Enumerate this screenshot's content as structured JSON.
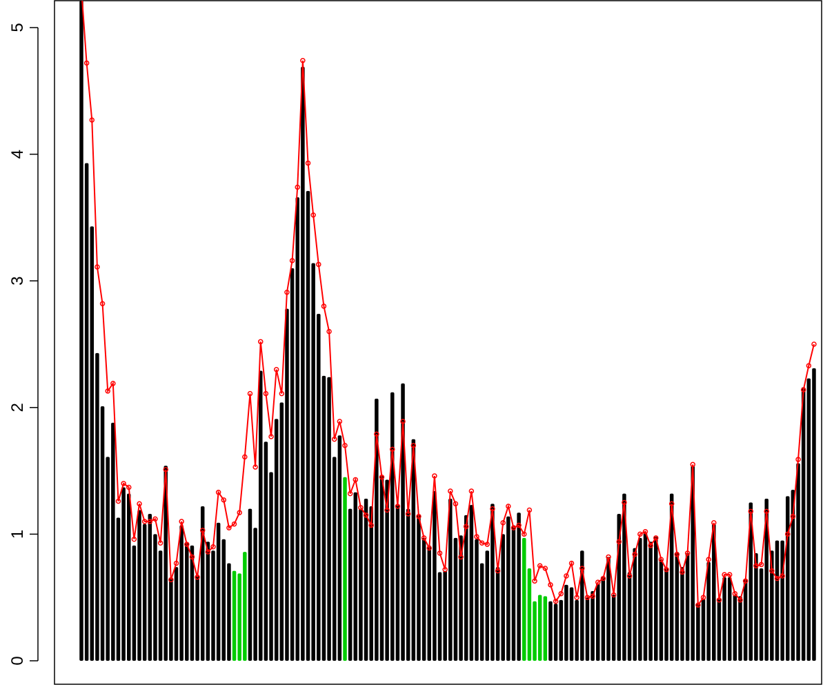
{
  "chart_data": {
    "type": "bar",
    "title": "",
    "xlabel": "",
    "ylabel": "",
    "ylim": [
      0,
      5.2
    ],
    "x_axis_shown": false,
    "y_ticks": [
      0,
      1,
      2,
      3,
      4,
      5
    ],
    "y_tick_labels": [
      "0",
      "1",
      "2",
      "3",
      "4",
      "5"
    ],
    "grid": false,
    "legend": "none",
    "colors": {
      "bar_default": "#000000",
      "bar_highlight": "#00cc00",
      "line": "#ff0000"
    },
    "bar_values": [
      5.25,
      3.93,
      3.43,
      2.43,
      2.01,
      1.61,
      1.88,
      1.13,
      1.37,
      1.32,
      0.91,
      1.19,
      1.08,
      1.16,
      1.0,
      0.87,
      1.54,
      0.65,
      0.74,
      1.07,
      0.93,
      0.91,
      0.68,
      1.22,
      0.94,
      0.87,
      1.09,
      0.96,
      0.77,
      0.71,
      0.69,
      0.86,
      1.2,
      1.05,
      2.29,
      1.73,
      1.49,
      1.91,
      2.04,
      2.78,
      3.1,
      3.66,
      4.69,
      3.71,
      3.14,
      2.74,
      2.25,
      2.24,
      1.61,
      1.78,
      1.45,
      1.2,
      1.33,
      1.2,
      1.28,
      1.22,
      2.07,
      1.46,
      1.43,
      2.12,
      1.23,
      2.19,
      1.2,
      1.75,
      1.15,
      0.97,
      0.91,
      1.34,
      0.7,
      0.71,
      1.28,
      0.97,
      0.99,
      1.15,
      1.23,
      0.96,
      0.77,
      0.87,
      1.24,
      0.74,
      1.0,
      1.14,
      1.07,
      1.17,
      0.97,
      0.73,
      0.47,
      0.52,
      0.51,
      0.47,
      0.45,
      0.48,
      0.6,
      0.58,
      0.48,
      0.87,
      0.5,
      0.55,
      0.61,
      0.66,
      0.82,
      0.52,
      1.16,
      1.32,
      0.7,
      0.89,
      0.97,
      1.01,
      0.94,
      0.98,
      0.8,
      0.73,
      1.32,
      0.86,
      0.74,
      0.85,
      1.54,
      0.45,
      0.49,
      0.78,
      1.08,
      0.49,
      0.66,
      0.66,
      0.52,
      0.51,
      0.64,
      1.25,
      0.85,
      0.73,
      1.28,
      0.87,
      0.95,
      0.95,
      1.3,
      1.35,
      1.56,
      2.16,
      2.23,
      2.31
    ],
    "highlighted_bar_indices": [
      29,
      30,
      31,
      50,
      84,
      85,
      86,
      87,
      88
    ],
    "line_values": [
      5.3,
      4.72,
      4.27,
      3.11,
      2.82,
      2.13,
      2.19,
      1.26,
      1.4,
      1.37,
      0.96,
      1.24,
      1.1,
      1.1,
      1.12,
      0.93,
      1.51,
      0.64,
      0.77,
      1.1,
      0.92,
      0.82,
      0.66,
      1.03,
      0.86,
      0.9,
      1.33,
      1.27,
      1.05,
      1.08,
      1.17,
      1.61,
      2.11,
      1.53,
      2.52,
      2.11,
      1.77,
      2.3,
      2.11,
      2.91,
      3.16,
      3.74,
      4.74,
      3.93,
      3.52,
      3.13,
      2.8,
      2.6,
      1.75,
      1.89,
      1.7,
      1.32,
      1.43,
      1.21,
      1.15,
      1.07,
      1.79,
      1.45,
      1.19,
      1.67,
      1.22,
      1.89,
      1.16,
      1.7,
      1.14,
      0.97,
      0.89,
      1.46,
      0.85,
      0.72,
      1.34,
      1.24,
      0.82,
      1.06,
      1.34,
      0.98,
      0.93,
      0.92,
      1.2,
      0.71,
      1.09,
      1.22,
      1.05,
      1.07,
      1.0,
      1.19,
      0.63,
      0.75,
      0.73,
      0.6,
      0.47,
      0.53,
      0.67,
      0.77,
      0.5,
      0.73,
      0.5,
      0.51,
      0.62,
      0.65,
      0.82,
      0.52,
      0.94,
      1.25,
      0.67,
      0.84,
      1.0,
      1.02,
      0.91,
      0.97,
      0.8,
      0.72,
      1.24,
      0.84,
      0.7,
      0.85,
      1.55,
      0.44,
      0.5,
      0.8,
      1.09,
      0.48,
      0.68,
      0.68,
      0.53,
      0.48,
      0.63,
      1.18,
      0.75,
      0.76,
      1.18,
      0.71,
      0.65,
      0.67,
      1.0,
      1.14,
      1.59,
      2.14,
      2.33,
      2.5
    ]
  }
}
